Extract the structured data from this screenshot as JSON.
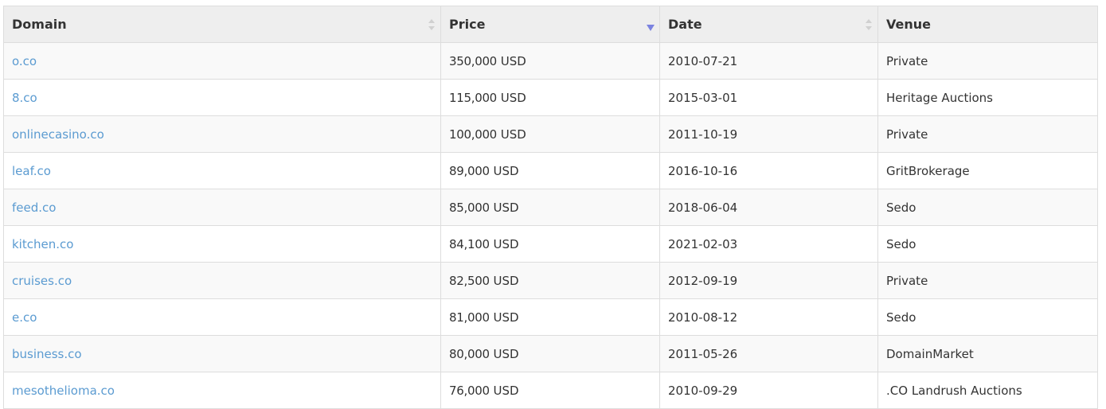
{
  "table": {
    "headers": {
      "domain": "Domain",
      "price": "Price",
      "date": "Date",
      "venue": "Venue"
    },
    "sort": {
      "column": "price",
      "direction": "descending",
      "active_color": "#7b83e0",
      "inactive_color": "#d0d0d0"
    },
    "link_color": "#5b9bd1",
    "currency": "USD",
    "rows": [
      {
        "domain": "o.co",
        "price": "350,000",
        "currency": "USD",
        "date": "2010-07-21",
        "venue": "Private"
      },
      {
        "domain": "8.co",
        "price": "115,000",
        "currency": "USD",
        "date": "2015-03-01",
        "venue": "Heritage Auctions"
      },
      {
        "domain": "onlinecasino.co",
        "price": "100,000",
        "currency": "USD",
        "date": "2011-10-19",
        "venue": "Private"
      },
      {
        "domain": "leaf.co",
        "price": "89,000",
        "currency": "USD",
        "date": "2016-10-16",
        "venue": "GritBrokerage"
      },
      {
        "domain": "feed.co",
        "price": "85,000",
        "currency": "USD",
        "date": "2018-06-04",
        "venue": "Sedo"
      },
      {
        "domain": "kitchen.co",
        "price": "84,100",
        "currency": "USD",
        "date": "2021-02-03",
        "venue": "Sedo"
      },
      {
        "domain": "cruises.co",
        "price": "82,500",
        "currency": "USD",
        "date": "2012-09-19",
        "venue": "Private"
      },
      {
        "domain": "e.co",
        "price": "81,000",
        "currency": "USD",
        "date": "2010-08-12",
        "venue": "Sedo"
      },
      {
        "domain": "business.co",
        "price": "80,000",
        "currency": "USD",
        "date": "2011-05-26",
        "venue": "DomainMarket"
      },
      {
        "domain": "mesothelioma.co",
        "price": "76,000",
        "currency": "USD",
        "date": "2010-09-29",
        "venue": ".CO Landrush Auctions"
      }
    ]
  }
}
